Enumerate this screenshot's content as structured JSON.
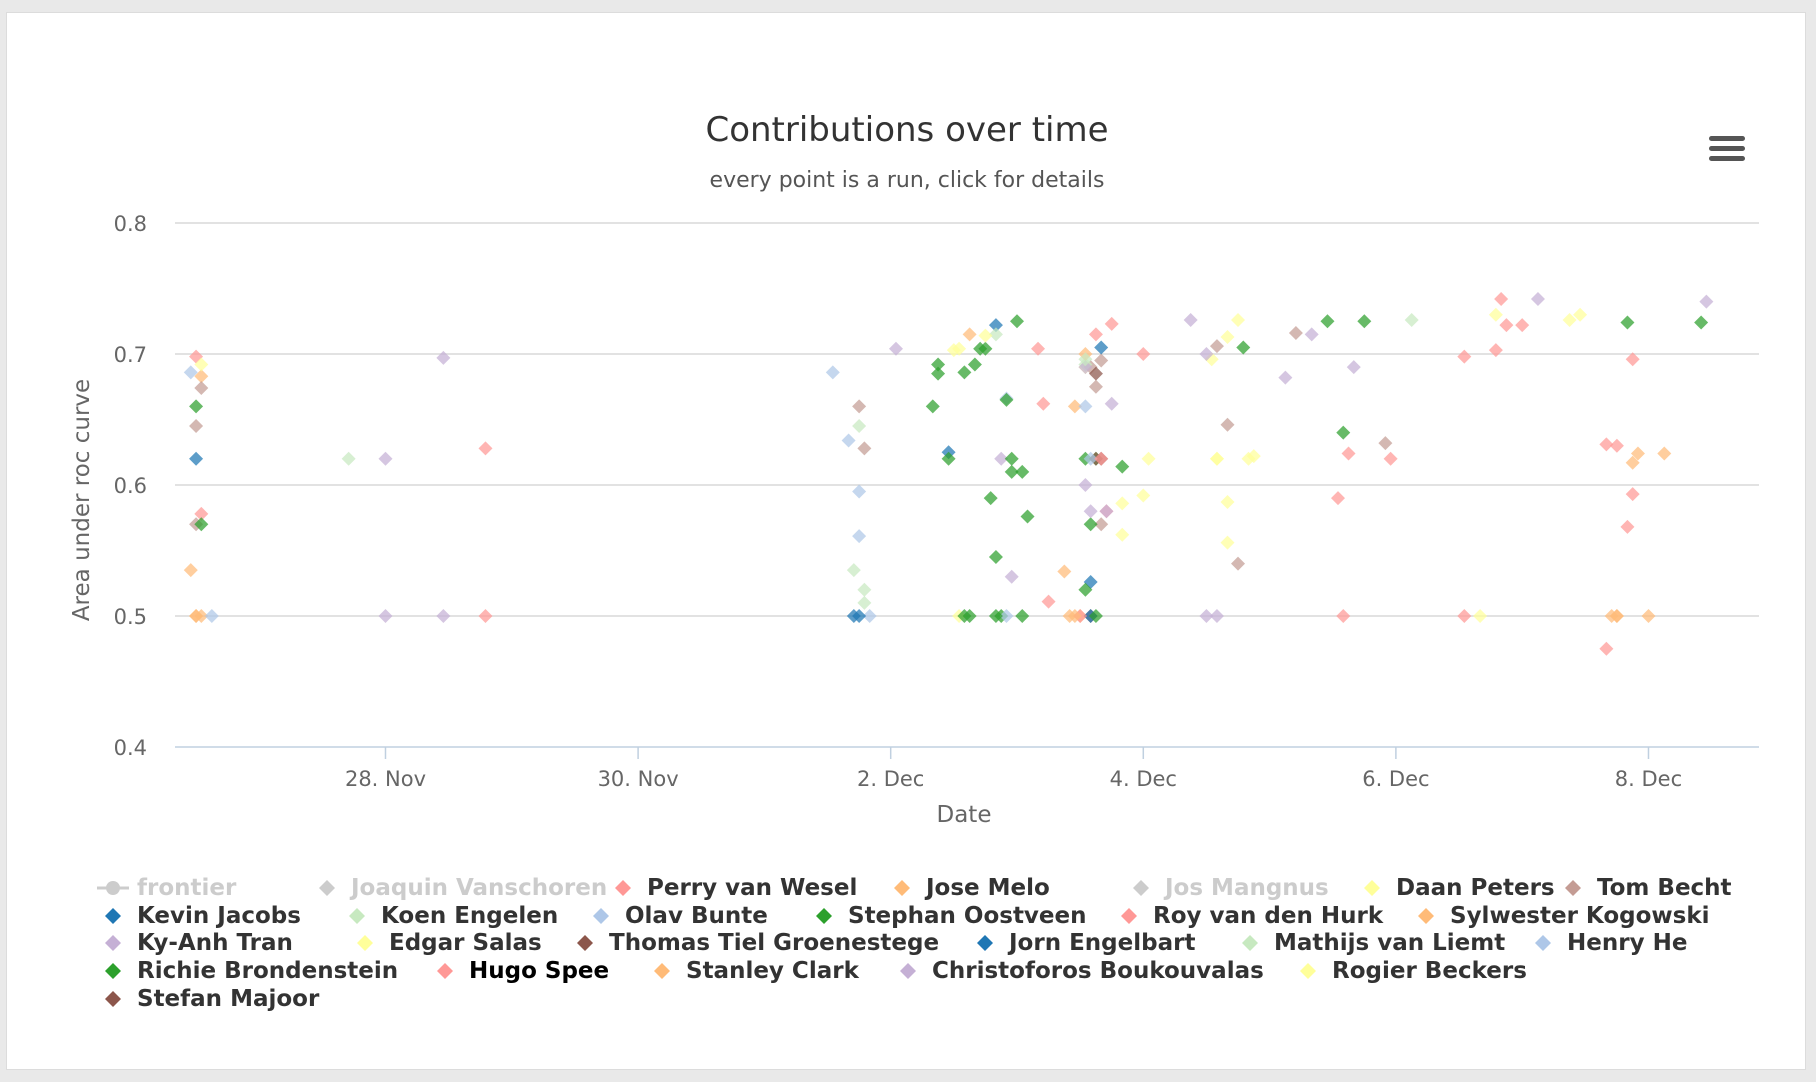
{
  "chart": {
    "menu_icon": "hamburger-menu-icon",
    "colors": {
      "grid": "#d8d8d8",
      "axis": "#c0d0e0",
      "text": "#666666",
      "title": "#333333",
      "hidden": "#cccccc"
    }
  },
  "chart_data": {
    "type": "scatter",
    "title": "Contributions over time",
    "subtitle": "every point is a run, click for details",
    "xlabel": "Date",
    "ylabel": "Area under roc curve",
    "x_type": "datetime",
    "xlim": [
      "2017-11-26T08:00",
      "2017-12-08T21:00"
    ],
    "ylim": [
      0.4,
      0.8
    ],
    "x_ticks": [
      {
        "date": "2017-11-28",
        "label": "28. Nov"
      },
      {
        "date": "2017-11-30",
        "label": "30. Nov"
      },
      {
        "date": "2017-12-02",
        "label": "2. Dec"
      },
      {
        "date": "2017-12-04",
        "label": "4. Dec"
      },
      {
        "date": "2017-12-06",
        "label": "6. Dec"
      },
      {
        "date": "2017-12-08",
        "label": "8. Dec"
      }
    ],
    "y_ticks": [
      "0.4",
      "0.5",
      "0.6",
      "0.7",
      "0.8"
    ],
    "grid": true,
    "legend_position": "bottom",
    "series": [
      {
        "name": "frontier",
        "color": "#cccccc",
        "visible": false,
        "symbol": "line",
        "points": []
      },
      {
        "name": "Joaquin Vanschoren",
        "color": "#cccccc",
        "visible": false,
        "points": []
      },
      {
        "name": "Perry van Wesel",
        "color": "#ff9896",
        "points": [
          [
            "2017-11-26T12:00",
            0.698
          ],
          [
            "2017-11-26T13:00",
            0.578
          ],
          [
            "2017-11-28T19:00",
            0.628
          ],
          [
            "2017-11-28T19:00",
            0.5
          ],
          [
            "2017-12-03T04:00",
            0.704
          ],
          [
            "2017-12-03T05:00",
            0.662
          ],
          [
            "2017-12-03T06:00",
            0.511
          ],
          [
            "2017-12-05T13:00",
            0.59
          ],
          [
            "2017-12-06T13:00",
            0.698
          ],
          [
            "2017-12-06T19:00",
            0.703
          ],
          [
            "2017-12-07T16:00",
            0.631
          ],
          [
            "2017-12-07T20:00",
            0.568
          ],
          [
            "2017-12-07T21:00",
            0.696
          ]
        ]
      },
      {
        "name": "Jose Melo",
        "color": "#ffbb78",
        "points": [
          [
            "2017-11-26T13:00",
            0.683
          ],
          [
            "2017-11-26T12:00",
            0.5
          ],
          [
            "2017-11-26T13:00",
            0.5
          ],
          [
            "2017-12-02T15:00",
            0.715
          ],
          [
            "2017-12-03T09:00",
            0.534
          ],
          [
            "2017-12-03T10:00",
            0.5
          ],
          [
            "2017-12-03T11:00",
            0.66
          ],
          [
            "2017-12-07T17:00",
            0.5
          ],
          [
            "2017-12-07T18:00",
            0.5
          ],
          [
            "2017-12-07T22:00",
            0.624
          ],
          [
            "2017-12-07T21:00",
            0.617
          ],
          [
            "2017-12-08T00:00",
            0.5
          ],
          [
            "2017-12-08T03:00",
            0.624
          ]
        ]
      },
      {
        "name": "Jos Mangnus",
        "color": "#cccccc",
        "visible": false,
        "points": []
      },
      {
        "name": "Daan Peters",
        "color": "#ffff9a",
        "points": [
          [
            "2017-11-26T13:00",
            0.692
          ],
          [
            "2017-12-02T12:00",
            0.703
          ],
          [
            "2017-12-02T13:00",
            0.5
          ],
          [
            "2017-12-03T13:00",
            0.69
          ],
          [
            "2017-12-03T20:00",
            0.586
          ],
          [
            "2017-12-04T01:00",
            0.62
          ],
          [
            "2017-12-04T13:00",
            0.696
          ],
          [
            "2017-12-04T14:00",
            0.62
          ],
          [
            "2017-12-04T16:00",
            0.713
          ],
          [
            "2017-12-04T18:00",
            0.726
          ],
          [
            "2017-12-04T20:00",
            0.62
          ],
          [
            "2017-12-06T19:00",
            0.73
          ],
          [
            "2017-12-07T09:00",
            0.726
          ]
        ]
      },
      {
        "name": "Tom Becht",
        "color": "#c49c94",
        "points": [
          [
            "2017-11-26T12:00",
            0.645
          ],
          [
            "2017-11-26T13:00",
            0.674
          ],
          [
            "2017-11-26T12:00",
            0.57
          ],
          [
            "2017-12-01T18:00",
            0.66
          ],
          [
            "2017-12-01T19:00",
            0.628
          ],
          [
            "2017-12-03T14:00",
            0.69
          ],
          [
            "2017-12-03T15:00",
            0.675
          ],
          [
            "2017-12-03T16:00",
            0.695
          ],
          [
            "2017-12-03T16:00",
            0.57
          ],
          [
            "2017-12-04T14:00",
            0.706
          ],
          [
            "2017-12-04T16:00",
            0.646
          ],
          [
            "2017-12-04T18:00",
            0.54
          ],
          [
            "2017-12-05T05:00",
            0.716
          ],
          [
            "2017-12-05T22:00",
            0.632
          ]
        ]
      },
      {
        "name": "Kevin Jacobs",
        "color": "#1f77b4",
        "points": [
          [
            "2017-11-26T12:00",
            0.62
          ],
          [
            "2017-12-01T17:00",
            0.5
          ],
          [
            "2017-12-02T11:00",
            0.625
          ],
          [
            "2017-12-02T20:00",
            0.722
          ],
          [
            "2017-12-03T14:00",
            0.526
          ],
          [
            "2017-12-03T16:00",
            0.705
          ]
        ]
      },
      {
        "name": "Koen Engelen",
        "color": "#c7e9c0",
        "points": [
          [
            "2017-11-27T17:00",
            0.62
          ],
          [
            "2017-12-01T17:00",
            0.535
          ],
          [
            "2017-12-01T18:00",
            0.645
          ],
          [
            "2017-12-01T19:00",
            0.52
          ],
          [
            "2017-12-01T19:00",
            0.51
          ],
          [
            "2017-12-02T20:00",
            0.715
          ],
          [
            "2017-12-03T13:00",
            0.692
          ],
          [
            "2017-12-06T03:00",
            0.726
          ]
        ]
      },
      {
        "name": "Olav Bunte",
        "color": "#aec7e8",
        "points": [
          [
            "2017-11-26T11:00",
            0.686
          ],
          [
            "2017-11-26T15:00",
            0.5
          ],
          [
            "2017-12-01T13:00",
            0.686
          ],
          [
            "2017-12-01T16:00",
            0.634
          ],
          [
            "2017-12-01T18:00",
            0.595
          ],
          [
            "2017-12-01T18:00",
            0.561
          ],
          [
            "2017-12-01T20:00",
            0.5
          ],
          [
            "2017-12-02T22:00",
            0.666
          ],
          [
            "2017-12-03T13:00",
            0.66
          ]
        ]
      },
      {
        "name": "Stephan Oostveen",
        "color": "#2ca02c",
        "points": [
          [
            "2017-11-26T12:00",
            0.66
          ],
          [
            "2017-11-26T13:00",
            0.57
          ],
          [
            "2017-12-02T08:00",
            0.66
          ],
          [
            "2017-12-02T09:00",
            0.692
          ],
          [
            "2017-12-02T09:00",
            0.685
          ],
          [
            "2017-12-02T11:00",
            0.62
          ],
          [
            "2017-12-02T14:00",
            0.686
          ],
          [
            "2017-12-02T16:00",
            0.692
          ],
          [
            "2017-12-02T17:00",
            0.704
          ],
          [
            "2017-12-02T18:00",
            0.704
          ],
          [
            "2017-12-02T19:00",
            0.59
          ],
          [
            "2017-12-02T20:00",
            0.545
          ],
          [
            "2017-12-02T21:00",
            0.5
          ],
          [
            "2017-12-02T22:00",
            0.665
          ],
          [
            "2017-12-02T23:00",
            0.61
          ],
          [
            "2017-12-03T00:00",
            0.725
          ],
          [
            "2017-12-03T01:00",
            0.5
          ],
          [
            "2017-12-03T02:00",
            0.576
          ],
          [
            "2017-12-03T13:00",
            0.62
          ],
          [
            "2017-12-03T14:00",
            0.57
          ],
          [
            "2017-12-03T15:00",
            0.62
          ],
          [
            "2017-12-03T20:00",
            0.614
          ],
          [
            "2017-12-04T19:00",
            0.705
          ],
          [
            "2017-12-05T11:00",
            0.725
          ],
          [
            "2017-12-05T14:00",
            0.64
          ],
          [
            "2017-12-05T18:00",
            0.725
          ],
          [
            "2017-12-07T20:00",
            0.724
          ],
          [
            "2017-12-08T10:00",
            0.724
          ]
        ]
      },
      {
        "name": "Roy van den Hurk",
        "color": "#ff9896",
        "points": [
          [
            "2017-12-03T15:00",
            0.715
          ],
          [
            "2017-12-03T18:00",
            0.723
          ],
          [
            "2017-12-03T17:00",
            0.58
          ],
          [
            "2017-12-04T00:00",
            0.7
          ],
          [
            "2017-12-05T14:00",
            0.5
          ],
          [
            "2017-12-05T15:00",
            0.624
          ],
          [
            "2017-12-05T23:00",
            0.62
          ],
          [
            "2017-12-06T13:00",
            0.5
          ],
          [
            "2017-12-06T20:00",
            0.742
          ],
          [
            "2017-12-06T21:00",
            0.722
          ],
          [
            "2017-12-07T00:00",
            0.722
          ],
          [
            "2017-12-07T16:00",
            0.475
          ],
          [
            "2017-12-07T18:00",
            0.63
          ],
          [
            "2017-12-07T21:00",
            0.593
          ]
        ]
      },
      {
        "name": "Sylwester Kogowski",
        "color": "#ffbb78",
        "points": [
          [
            "2017-11-26T11:00",
            0.535
          ],
          [
            "2017-11-26T12:00",
            0.5
          ],
          [
            "2017-12-03T12:00",
            0.5
          ],
          [
            "2017-12-03T13:00",
            0.7
          ],
          [
            "2017-12-07T18:00",
            0.5
          ]
        ]
      },
      {
        "name": "Ky-Anh Tran",
        "color": "#c5b0d5",
        "points": [
          [
            "2017-11-28T00:00",
            0.62
          ],
          [
            "2017-11-28T00:00",
            0.5
          ],
          [
            "2017-11-28T11:00",
            0.697
          ],
          [
            "2017-11-28T11:00",
            0.5
          ],
          [
            "2017-12-02T01:00",
            0.704
          ],
          [
            "2017-12-02T21:00",
            0.62
          ],
          [
            "2017-12-02T23:00",
            0.53
          ],
          [
            "2017-12-03T13:00",
            0.69
          ],
          [
            "2017-12-03T14:00",
            0.58
          ],
          [
            "2017-12-03T17:00",
            0.58
          ],
          [
            "2017-12-03T18:00",
            0.662
          ],
          [
            "2017-12-04T09:00",
            0.726
          ],
          [
            "2017-12-04T12:00",
            0.7
          ],
          [
            "2017-12-04T12:00",
            0.5
          ],
          [
            "2017-12-04T14:00",
            0.5
          ],
          [
            "2017-12-05T03:00",
            0.682
          ],
          [
            "2017-12-05T08:00",
            0.715
          ],
          [
            "2017-12-05T16:00",
            0.69
          ],
          [
            "2017-12-07T03:00",
            0.742
          ],
          [
            "2017-12-08T11:00",
            0.74
          ]
        ]
      },
      {
        "name": "Edgar Salas",
        "color": "#ffff9a",
        "points": [
          [
            "2017-12-02T13:00",
            0.704
          ],
          [
            "2017-12-02T18:00",
            0.714
          ],
          [
            "2017-12-03T20:00",
            0.562
          ],
          [
            "2017-12-04T00:00",
            0.592
          ],
          [
            "2017-12-04T16:00",
            0.587
          ],
          [
            "2017-12-04T16:00",
            0.556
          ],
          [
            "2017-12-04T21:00",
            0.622
          ],
          [
            "2017-12-06T16:00",
            0.5
          ],
          [
            "2017-12-07T11:00",
            0.73
          ]
        ]
      },
      {
        "name": "Thomas Tiel Groenestege",
        "color": "#8c564b",
        "points": [
          [
            "2017-12-03T15:00",
            0.62
          ],
          [
            "2017-12-03T16:00",
            0.62
          ],
          [
            "2017-12-03T14:00",
            0.5
          ]
        ]
      },
      {
        "name": "Jorn Engelbart",
        "color": "#1f77b4",
        "points": [
          [
            "2017-12-01T18:00",
            0.5
          ],
          [
            "2017-12-03T14:00",
            0.5
          ]
        ]
      },
      {
        "name": "Mathijs van Liemt",
        "color": "#c7e9c0",
        "points": [
          [
            "2017-12-03T13:00",
            0.696
          ]
        ]
      },
      {
        "name": "Henry He",
        "color": "#aec7e8",
        "points": [
          [
            "2017-12-02T22:00",
            0.5
          ],
          [
            "2017-12-03T14:00",
            0.62
          ]
        ]
      },
      {
        "name": "Richie Brondenstein",
        "color": "#2ca02c",
        "points": [
          [
            "2017-12-02T14:00",
            0.5
          ],
          [
            "2017-12-02T15:00",
            0.5
          ],
          [
            "2017-12-02T20:00",
            0.5
          ],
          [
            "2017-12-02T23:00",
            0.62
          ],
          [
            "2017-12-03T01:00",
            0.61
          ],
          [
            "2017-12-03T13:00",
            0.52
          ],
          [
            "2017-12-03T15:00",
            0.5
          ]
        ]
      },
      {
        "name": "Hugo Spee",
        "color": "#ff9896",
        "hover": true,
        "points": [
          [
            "2017-12-03T12:00",
            0.5
          ],
          [
            "2017-12-03T16:00",
            0.62
          ]
        ]
      },
      {
        "name": "Stanley Clark",
        "color": "#ffbb78",
        "points": [
          [
            "2017-12-03T11:00",
            0.5
          ]
        ]
      },
      {
        "name": "Christoforos Boukouvalas",
        "color": "#c5b0d5",
        "points": [
          [
            "2017-12-03T13:00",
            0.6
          ]
        ]
      },
      {
        "name": "Rogier Beckers",
        "color": "#ffff9a",
        "points": [
          [
            "2017-12-04T14:00",
            0.62
          ]
        ]
      },
      {
        "name": "Stefan Majoor",
        "color": "#8c564b",
        "points": [
          [
            "2017-12-03T15:00",
            0.685
          ]
        ]
      }
    ]
  }
}
